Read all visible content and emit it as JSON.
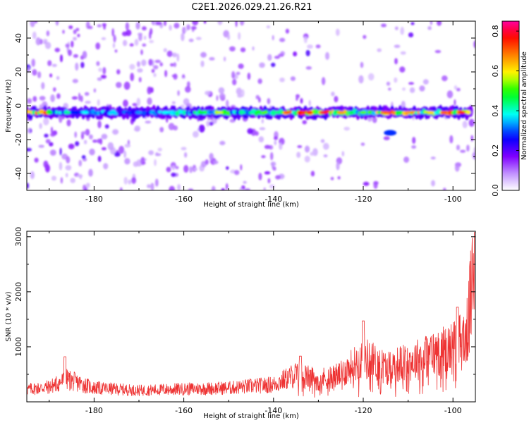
{
  "title": "C2E1.2026.029.21.26.R21",
  "chart_data": [
    {
      "type": "heatmap",
      "name": "spectrogram",
      "xlabel": "Height of straight line (km)",
      "ylabel": "Frequency (Hz)",
      "xlim": [
        -195,
        -95
      ],
      "ylim": [
        -50,
        50
      ],
      "xticks": [
        -180,
        -160,
        -140,
        -120,
        -100
      ],
      "yticks": [
        -40,
        -20,
        0,
        20,
        40
      ],
      "colorbar": {
        "label": "Normalized spectral amplitude",
        "range": [
          0.0,
          0.85
        ],
        "ticks": [
          0.0,
          0.2,
          0.4,
          0.6,
          0.8
        ],
        "tick_labels": [
          "0.0",
          "0.2",
          "0.4",
          "0.6",
          "0.8"
        ],
        "colors": [
          "#ffffff",
          "#8000ff",
          "#0000ff",
          "#00ffff",
          "#00ff00",
          "#ffff00",
          "#ff8000",
          "#ff0000",
          "#ff00a0"
        ]
      },
      "ridge": {
        "frequency_hz": -4,
        "description": "main signal band centered near -4 Hz",
        "peak_points": [
          {
            "x": -190,
            "amp": 0.5
          },
          {
            "x": -186,
            "amp": 0.45
          },
          {
            "x": -182,
            "amp": 0.4
          },
          {
            "x": -176,
            "amp": 0.38
          },
          {
            "x": -170,
            "amp": 0.35
          },
          {
            "x": -164,
            "amp": 0.4
          },
          {
            "x": -156,
            "amp": 0.5
          },
          {
            "x": -152,
            "amp": 0.6
          },
          {
            "x": -147,
            "amp": 0.45
          },
          {
            "x": -142,
            "amp": 0.55
          },
          {
            "x": -137,
            "amp": 0.75
          },
          {
            "x": -132,
            "amp": 0.8
          },
          {
            "x": -129,
            "amp": 0.85
          },
          {
            "x": -125,
            "amp": 0.7
          },
          {
            "x": -120,
            "amp": 0.55
          },
          {
            "x": -115,
            "amp": 0.75
          },
          {
            "x": -110,
            "amp": 0.7
          },
          {
            "x": -105,
            "amp": 0.65
          },
          {
            "x": -102,
            "amp": 0.75
          },
          {
            "x": -98,
            "amp": 0.8
          }
        ]
      },
      "secondary_blob": {
        "x": -114,
        "freq": -16,
        "amp": 0.3
      }
    },
    {
      "type": "line",
      "name": "snr",
      "xlabel": "Height of straight line (km)",
      "ylabel": "SNR (10 * v/v)",
      "xlim": [
        -195,
        -95
      ],
      "ylim": [
        0,
        3100
      ],
      "xticks": [
        -180,
        -160,
        -140,
        -120,
        -100
      ],
      "yticks": [
        1000,
        2000,
        3000
      ],
      "color": "#ee3333",
      "envelope": [
        {
          "x": -195,
          "y": 250
        },
        {
          "x": -190,
          "y": 300
        },
        {
          "x": -186,
          "y": 450
        },
        {
          "x": -180,
          "y": 280
        },
        {
          "x": -170,
          "y": 230
        },
        {
          "x": -160,
          "y": 260
        },
        {
          "x": -150,
          "y": 280
        },
        {
          "x": -140,
          "y": 350
        },
        {
          "x": -135,
          "y": 550
        },
        {
          "x": -130,
          "y": 450
        },
        {
          "x": -125,
          "y": 550
        },
        {
          "x": -120,
          "y": 900
        },
        {
          "x": -115,
          "y": 700
        },
        {
          "x": -110,
          "y": 800
        },
        {
          "x": -105,
          "y": 950
        },
        {
          "x": -100,
          "y": 1100
        },
        {
          "x": -97,
          "y": 1300
        },
        {
          "x": -95.5,
          "y": 2500
        },
        {
          "x": -95,
          "y": 3000
        }
      ],
      "spikes": [
        {
          "x": -186.5,
          "y": 820
        },
        {
          "x": -134,
          "y": 830
        },
        {
          "x": -120,
          "y": 1470
        },
        {
          "x": -99,
          "y": 1720
        },
        {
          "x": -95,
          "y": 3080
        }
      ]
    }
  ]
}
